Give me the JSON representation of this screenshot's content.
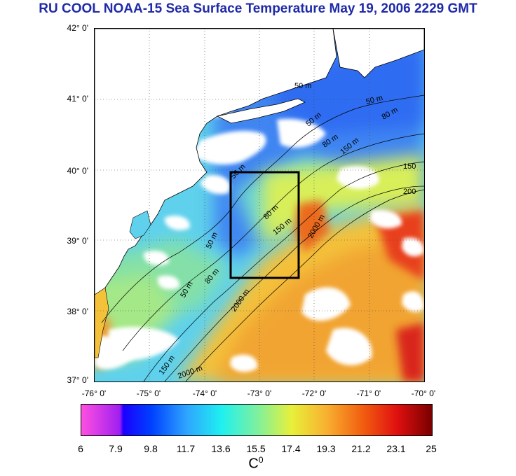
{
  "title": "RU COOL  NOAA-15 Sea Surface Temperature May 19, 2006 2229 GMT",
  "y_axis_labels": [
    "42° 0'",
    "41° 0'",
    "40° 0'",
    "39° 0'",
    "38° 0'",
    "37° 0'"
  ],
  "x_axis_labels": [
    "-76° 0'",
    "-75° 0'",
    "-74° 0'",
    "-73° 0'",
    "-72° 0'",
    "-71° 0'",
    "-70° 0'"
  ],
  "contour_labels": [
    "50 m",
    "50 m",
    "50 m",
    "50 m",
    "50 m",
    "50 m",
    "80 m",
    "80 m",
    "80 m",
    "80 m",
    "150 m",
    "150 m",
    "150 m",
    "150",
    "200",
    "2000 m",
    "2000 m",
    "2000 m"
  ],
  "colorbar": {
    "ticks": [
      "6",
      "7.9",
      "9.8",
      "11.7",
      "13.6",
      "15.5",
      "17.4",
      "19.3",
      "21.2",
      "23.1",
      "25"
    ],
    "unit_label": "C",
    "unit_superscript": "0",
    "range": [
      6,
      25
    ]
  },
  "colors": {
    "title": "#1f2aa8",
    "land": "#ffffff",
    "study_box": "#000000"
  }
}
